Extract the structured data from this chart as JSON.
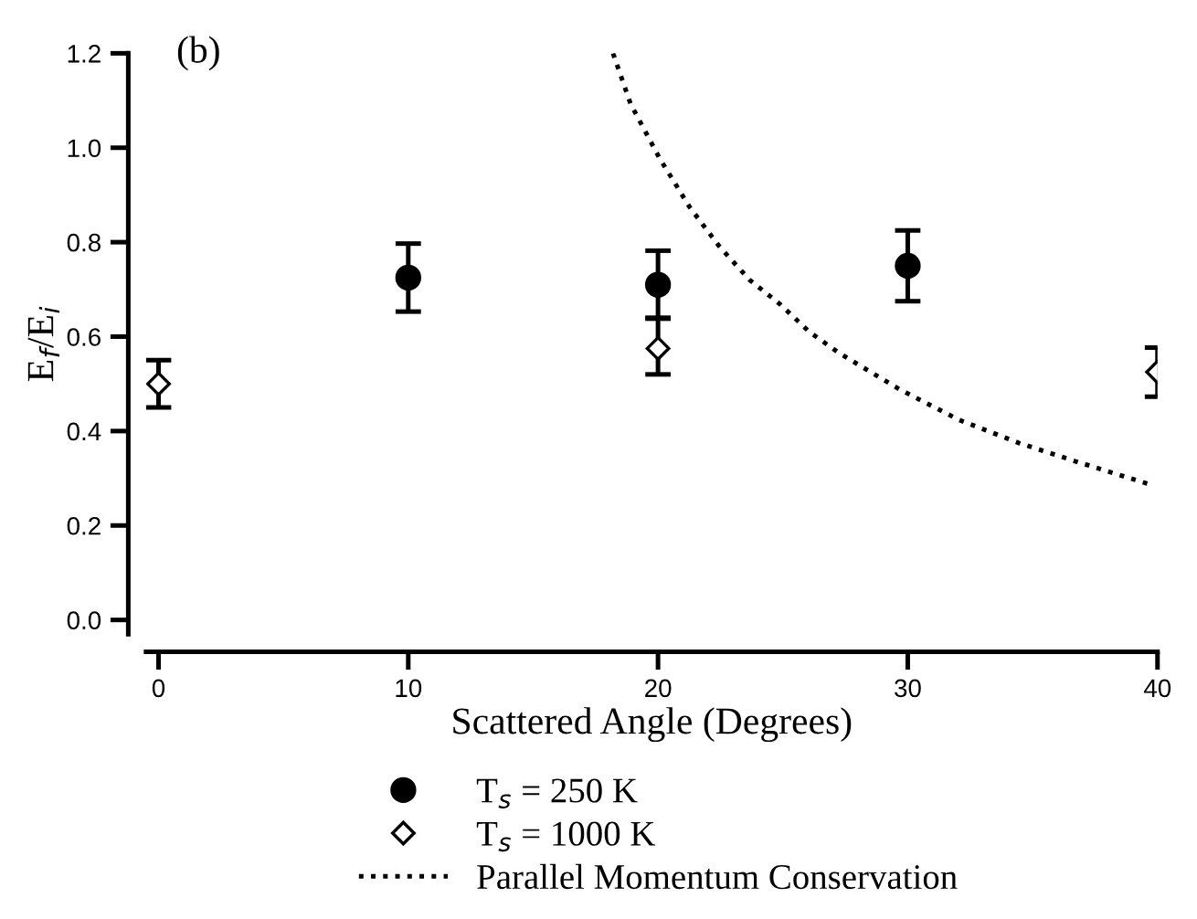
{
  "chart_data": {
    "type": "scatter",
    "title": "(b)",
    "xlabel": "Scattered Angle (Degrees)",
    "ylabel": "E$_{f}$/E$_{i}$",
    "xlim": [
      -0.5,
      40
    ],
    "ylim": [
      -0.03,
      1.2
    ],
    "xticks": [
      0,
      10,
      20,
      30,
      40
    ],
    "yticks": [
      {
        "value": 0,
        "label": "0.0"
      },
      {
        "value": 0.2,
        "label": "0.2"
      },
      {
        "value": 0.4,
        "label": "0.4"
      },
      {
        "value": 0.6,
        "label": "0.6"
      },
      {
        "value": 0.8,
        "label": "0.8"
      },
      {
        "value": 1.0,
        "label": "1.0"
      },
      {
        "value": 1.2,
        "label": "1.2"
      }
    ],
    "grid": false,
    "legend": "bottom",
    "series": [
      {
        "name": "T$_{s}$ = 250 K",
        "marker": "circle",
        "color": "#000000",
        "x": [
          10,
          20,
          30
        ],
        "values": [
          0.725,
          0.71,
          0.75
        ],
        "errors": [
          0.072,
          0.072,
          0.075
        ]
      },
      {
        "name": "T$_{s}$ = 1000 K",
        "marker": "diamond",
        "color": "#000000",
        "x": [
          0,
          20,
          40
        ],
        "values": [
          0.5,
          0.575,
          0.525
        ],
        "errors": [
          0.05,
          [
            0.52,
            0.64
          ],
          0.052
        ]
      },
      {
        "name": "Parallel Momentum Conservation",
        "type": "line",
        "line_style": "dotted",
        "marker": "none",
        "color": "#000000",
        "x": [
          18.2,
          18.9,
          20.07,
          21.27,
          22.47,
          23.67,
          24.9,
          26.06,
          27.26,
          29.65,
          32.04,
          34.44,
          36.83,
          39.7
        ],
        "values": [
          1.2,
          1.093,
          0.977,
          0.874,
          0.79,
          0.72,
          0.668,
          0.61,
          0.565,
          0.489,
          0.424,
          0.375,
          0.334,
          0.287
        ]
      }
    ]
  }
}
